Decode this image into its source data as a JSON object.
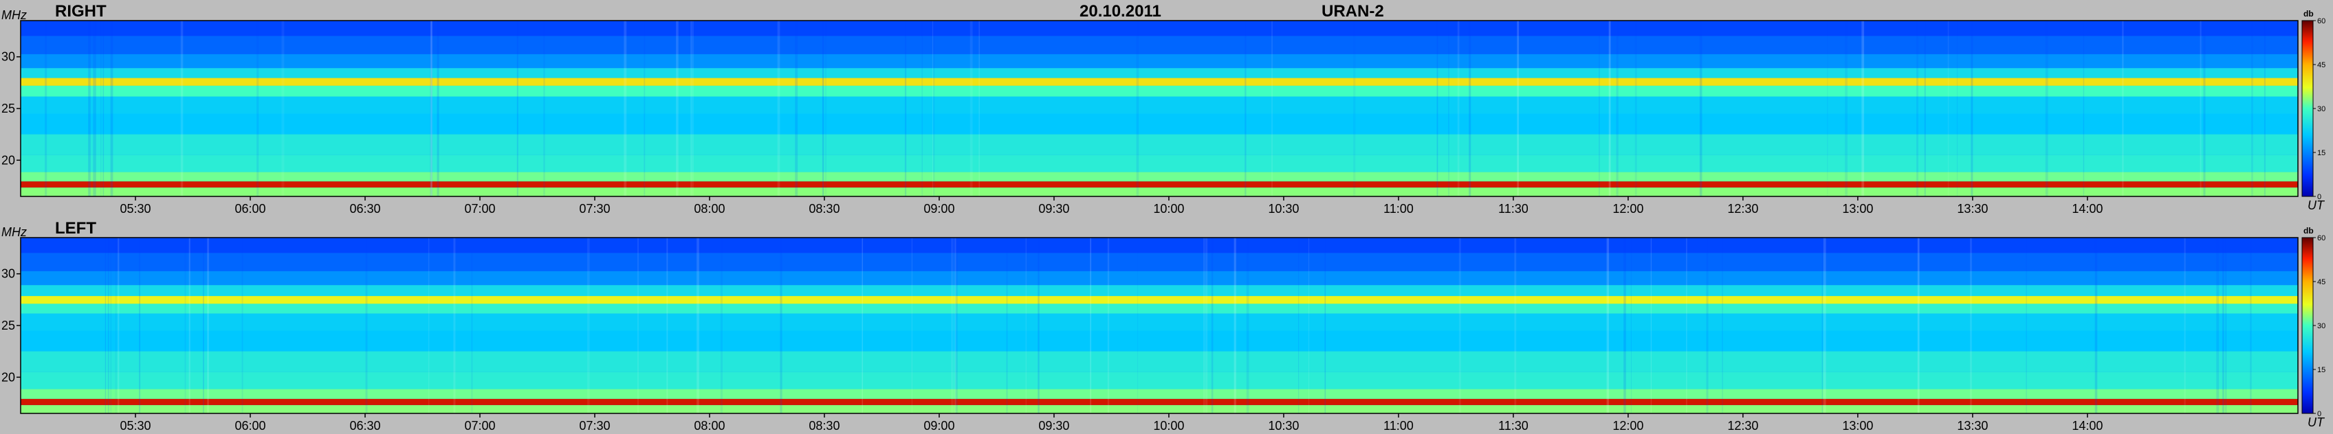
{
  "header": {
    "date": "20.10.2011",
    "instrument": "URAN-2"
  },
  "chart_data": [
    {
      "type": "heatmap",
      "panel_label": "RIGHT",
      "ylabel": "MHz",
      "xlabel": "UT",
      "ylim": [
        16.5,
        33.5
      ],
      "y_ticks": [
        {
          "label": "30",
          "value": 30
        },
        {
          "label": "25",
          "value": 25
        },
        {
          "label": "20",
          "value": 20
        }
      ],
      "xlim_minutes": [
        300,
        895
      ],
      "x_ticks": [
        {
          "label": "05:30",
          "value": 330
        },
        {
          "label": "06:00",
          "value": 360
        },
        {
          "label": "06:30",
          "value": 390
        },
        {
          "label": "07:00",
          "value": 420
        },
        {
          "label": "07:30",
          "value": 450
        },
        {
          "label": "08:00",
          "value": 480
        },
        {
          "label": "08:30",
          "value": 510
        },
        {
          "label": "09:00",
          "value": 540
        },
        {
          "label": "09:30",
          "value": 570
        },
        {
          "label": "10:00",
          "value": 600
        },
        {
          "label": "10:30",
          "value": 630
        },
        {
          "label": "11:00",
          "value": 660
        },
        {
          "label": "11:30",
          "value": 690
        },
        {
          "label": "12:00",
          "value": 720
        },
        {
          "label": "12:30",
          "value": 750
        },
        {
          "label": "13:00",
          "value": 780
        },
        {
          "label": "13:30",
          "value": 810
        },
        {
          "label": "14:00",
          "value": 840
        }
      ],
      "colorbar": {
        "unit": "db",
        "range": [
          0,
          60
        ],
        "ticks": [
          {
            "label": "60",
            "value": 60
          },
          {
            "label": "45",
            "value": 45
          },
          {
            "label": "30",
            "value": 30
          },
          {
            "label": "15",
            "value": 15
          },
          {
            "label": "0",
            "value": 0
          }
        ]
      },
      "intensity_profile_db": [
        {
          "mhz": 33.0,
          "db": 9
        },
        {
          "mhz": 31.0,
          "db": 12
        },
        {
          "mhz": 29.5,
          "db": 16
        },
        {
          "mhz": 28.3,
          "db": 24
        },
        {
          "mhz": 27.6,
          "db": 40
        },
        {
          "mhz": 26.8,
          "db": 30
        },
        {
          "mhz": 25.5,
          "db": 22
        },
        {
          "mhz": 23.5,
          "db": 21
        },
        {
          "mhz": 21.5,
          "db": 26
        },
        {
          "mhz": 19.5,
          "db": 27
        },
        {
          "mhz": 18.2,
          "db": 32
        },
        {
          "mhz": 17.7,
          "db": 55
        },
        {
          "mhz": 17.0,
          "db": 33
        }
      ]
    },
    {
      "type": "heatmap",
      "panel_label": "LEFT",
      "ylabel": "MHz",
      "xlabel": "UT",
      "ylim": [
        16.5,
        33.5
      ],
      "y_ticks": [
        {
          "label": "30",
          "value": 30
        },
        {
          "label": "25",
          "value": 25
        },
        {
          "label": "20",
          "value": 20
        }
      ],
      "xlim_minutes": [
        300,
        895
      ],
      "x_ticks": [
        {
          "label": "05:30",
          "value": 330
        },
        {
          "label": "06:00",
          "value": 360
        },
        {
          "label": "06:30",
          "value": 390
        },
        {
          "label": "07:00",
          "value": 420
        },
        {
          "label": "07:30",
          "value": 450
        },
        {
          "label": "08:00",
          "value": 480
        },
        {
          "label": "08:30",
          "value": 510
        },
        {
          "label": "09:00",
          "value": 540
        },
        {
          "label": "09:30",
          "value": 570
        },
        {
          "label": "10:00",
          "value": 600
        },
        {
          "label": "10:30",
          "value": 630
        },
        {
          "label": "11:00",
          "value": 660
        },
        {
          "label": "11:30",
          "value": 690
        },
        {
          "label": "12:00",
          "value": 720
        },
        {
          "label": "12:30",
          "value": 750
        },
        {
          "label": "13:00",
          "value": 780
        },
        {
          "label": "13:30",
          "value": 810
        },
        {
          "label": "14:00",
          "value": 840
        }
      ],
      "colorbar": {
        "unit": "db",
        "range": [
          0,
          60
        ],
        "ticks": [
          {
            "label": "60",
            "value": 60
          },
          {
            "label": "45",
            "value": 45
          },
          {
            "label": "30",
            "value": 30
          },
          {
            "label": "15",
            "value": 15
          },
          {
            "label": "0",
            "value": 0
          }
        ]
      },
      "intensity_profile_db": [
        {
          "mhz": 33.0,
          "db": 9
        },
        {
          "mhz": 31.0,
          "db": 12
        },
        {
          "mhz": 29.5,
          "db": 16
        },
        {
          "mhz": 28.3,
          "db": 24
        },
        {
          "mhz": 27.4,
          "db": 38
        },
        {
          "mhz": 26.8,
          "db": 28
        },
        {
          "mhz": 25.5,
          "db": 22
        },
        {
          "mhz": 23.5,
          "db": 21
        },
        {
          "mhz": 21.5,
          "db": 26
        },
        {
          "mhz": 19.5,
          "db": 27
        },
        {
          "mhz": 18.2,
          "db": 32
        },
        {
          "mhz": 17.6,
          "db": 55
        },
        {
          "mhz": 17.0,
          "db": 33
        }
      ]
    }
  ]
}
